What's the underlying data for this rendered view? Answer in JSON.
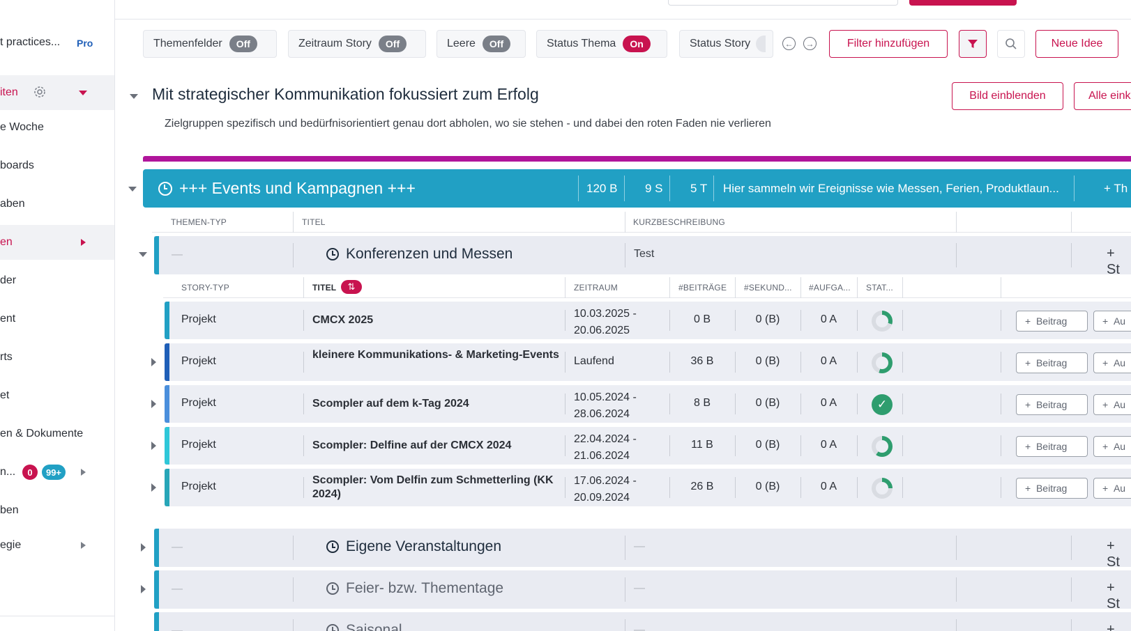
{
  "sidebar": {
    "workspace": "t practices...",
    "plan": "Pro",
    "items": [
      {
        "label": "iten"
      },
      {
        "label": "e Woche"
      },
      {
        "label": "boards"
      },
      {
        "label": "aben"
      },
      {
        "label": "en"
      },
      {
        "label": "der"
      },
      {
        "label": "ent"
      },
      {
        "label": "rts"
      },
      {
        "label": "et"
      },
      {
        "label": "en & Dokumente"
      },
      {
        "label": "n..."
      },
      {
        "label": "ben"
      },
      {
        "label": "egie"
      }
    ],
    "badge_red": "0",
    "badge_blue": "99+"
  },
  "filters": [
    {
      "label": "Themenfelder",
      "state": "Off"
    },
    {
      "label": "Zeitraum Story",
      "state": "Off"
    },
    {
      "label": "Leere",
      "state": "Off"
    },
    {
      "label": "Status Thema",
      "state": "On"
    },
    {
      "label": "Status Story",
      "state": ""
    }
  ],
  "toolbar": {
    "add_filter": "Filter hinzufügen",
    "new_idea": "Neue Idee",
    "show_image": "Bild einblenden",
    "all_expand": "Alle eink"
  },
  "theme": {
    "title": "Mit strategischer Kommunikation fokussiert zum Erfolg",
    "subtitle": "Zielgruppen spezifisch und bedürfnisorientiert genau dort abholen, wo sie stehen - und dabei den roten Faden nie verlieren",
    "bar_color": "#b0159b"
  },
  "event_bar": {
    "title": "+++ Events und Kampagnen +++",
    "beitraege": "120 B",
    "stories": "9 S",
    "tasks": "5 T",
    "description": "Hier sammeln wir Ereignisse wie Messen, Ferien, Produktlaun...",
    "plus_label": "+ Th",
    "color": "#21a0c4"
  },
  "theme_columns": [
    "THEMEN-TYP",
    "TITEL",
    "KURZBESCHREIBUNG"
  ],
  "story_columns": [
    "STORY-TYP",
    "TITEL",
    "ZEITRAUM",
    "#BEITRÄGE",
    "#SEKUND...",
    "#AUFGA...",
    "STAT..."
  ],
  "groups": [
    {
      "type": "—",
      "title": "Konferenzen und Messen",
      "desc": "Test",
      "plus": "+ St"
    },
    {
      "type": "—",
      "title": "Eigene Veranstaltungen",
      "desc": "—",
      "plus": "+ St"
    },
    {
      "type": "—",
      "title": "Feier- bzw. Thementage",
      "desc": "—",
      "plus": "+ St"
    },
    {
      "type": "—",
      "title": "Saisonal",
      "desc": "—",
      "plus": "+ St"
    }
  ],
  "stories": [
    {
      "type": "Projekt",
      "title": "CMCX 2025",
      "date1": "10.03.2025 -",
      "date2": "20.06.2025",
      "beitraege": "0 B",
      "sekundaer": "0 (B)",
      "aufgaben": "0 A",
      "status": "progress",
      "color": "#21a0c4"
    },
    {
      "type": "Projekt",
      "title": "kleinere Kommunikations- & Marketing-Events",
      "date1": "Laufend",
      "date2": "",
      "beitraege": "36 B",
      "sekundaer": "0 (B)",
      "aufgaben": "0 A",
      "status": "progress",
      "color": "#1f5fb8"
    },
    {
      "type": "Projekt",
      "title": "Scompler auf dem k-Tag 2024",
      "date1": "10.05.2024 -",
      "date2": "28.06.2024",
      "beitraege": "8 B",
      "sekundaer": "0 (B)",
      "aufgaben": "0 A",
      "status": "done",
      "color": "#4a8fdc"
    },
    {
      "type": "Projekt",
      "title": "Scompler: Delfine auf der CMCX 2024",
      "date1": "22.04.2024 -",
      "date2": "21.06.2024",
      "beitraege": "11 B",
      "sekundaer": "0 (B)",
      "aufgaben": "0 A",
      "status": "progress",
      "color": "#2ec7d8"
    },
    {
      "type": "Projekt",
      "title": "Scompler: Vom Delfin zum Schmetterling (KK 2024)",
      "date1": "17.06.2024 -",
      "date2": "20.09.2024",
      "beitraege": "26 B",
      "sekundaer": "0 (B)",
      "aufgaben": "0 A",
      "status": "progress",
      "color": "#27a6b8"
    }
  ],
  "row_buttons": {
    "beitrag": "Beitrag",
    "aufgabe": "Au"
  }
}
